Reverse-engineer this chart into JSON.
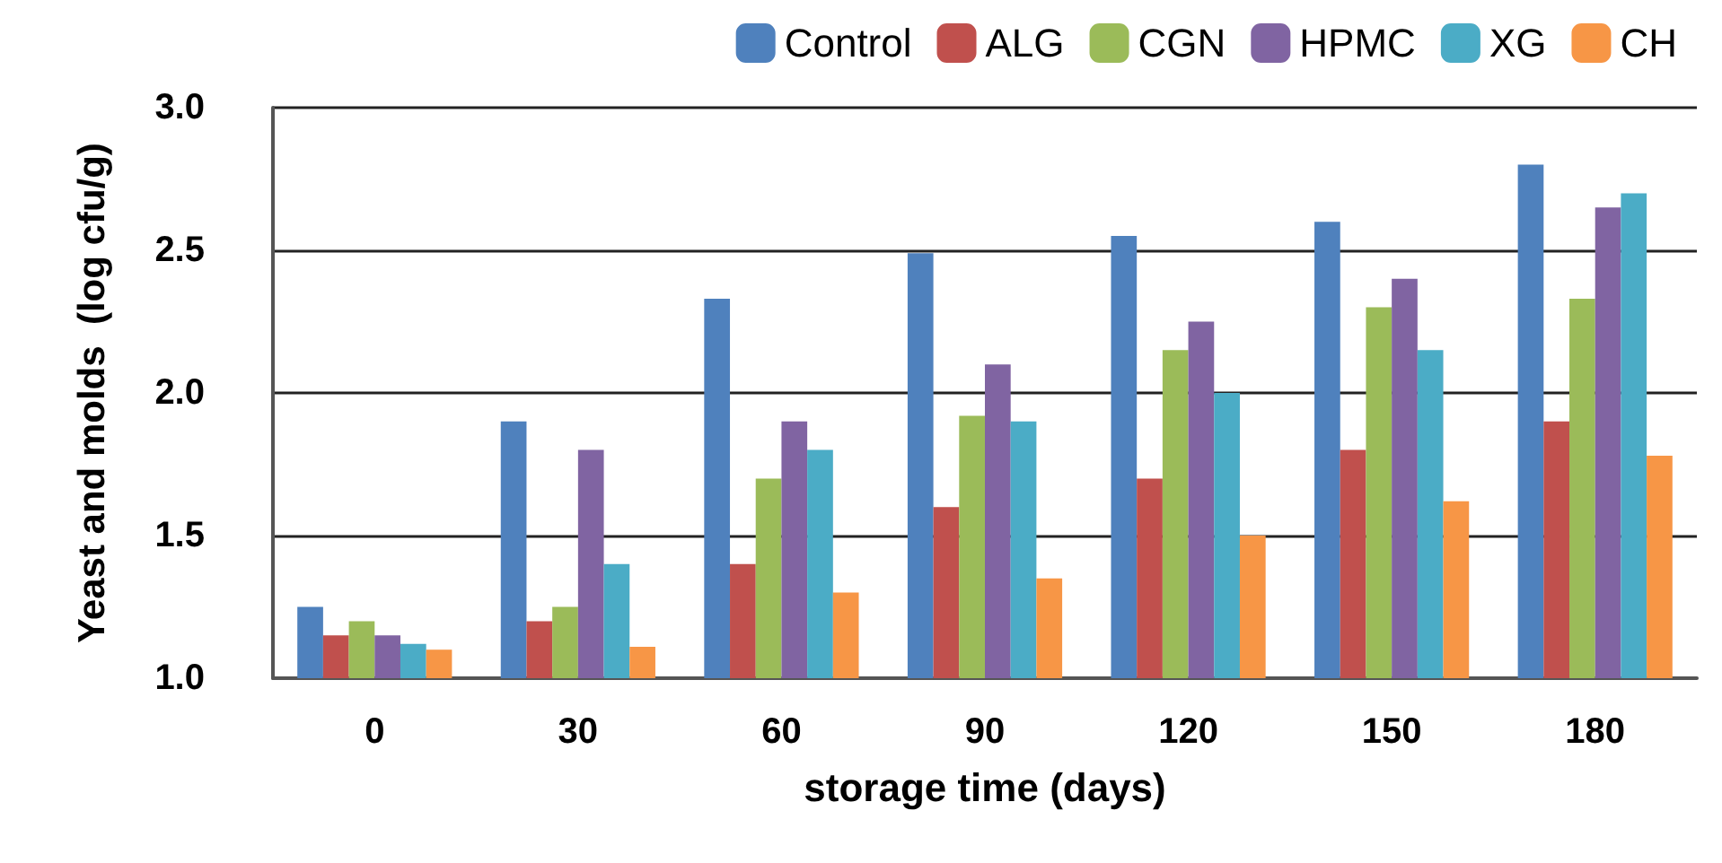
{
  "chart_data": {
    "type": "bar",
    "xlabel": "storage time (days)",
    "ylabel": "Yeast and molds  (log cfu/g)",
    "categories": [
      "0",
      "30",
      "60",
      "90",
      "120",
      "150",
      "180"
    ],
    "series": [
      {
        "name": "Control",
        "color": "#4f81bd",
        "values": [
          1.25,
          1.9,
          2.33,
          2.49,
          2.55,
          2.6,
          2.8
        ]
      },
      {
        "name": "ALG",
        "color": "#c0504d",
        "values": [
          1.15,
          1.2,
          1.4,
          1.6,
          1.7,
          1.8,
          1.9
        ]
      },
      {
        "name": "CGN",
        "color": "#9bbb59",
        "values": [
          1.2,
          1.25,
          1.7,
          1.92,
          2.15,
          2.3,
          2.33
        ]
      },
      {
        "name": "HPMC",
        "color": "#8064a2",
        "values": [
          1.15,
          1.8,
          1.9,
          2.1,
          2.25,
          2.4,
          2.65
        ]
      },
      {
        "name": "XG",
        "color": "#4bacc6",
        "values": [
          1.12,
          1.4,
          1.8,
          1.9,
          2.0,
          2.15,
          2.7
        ]
      },
      {
        "name": "CH",
        "color": "#f79646",
        "values": [
          1.1,
          1.11,
          1.3,
          1.35,
          1.5,
          1.62,
          1.78
        ]
      }
    ],
    "ylim": [
      1.0,
      3.0
    ],
    "yticks": [
      {
        "value": 1.0,
        "label": "1.0"
      },
      {
        "value": 1.5,
        "label": "1.5"
      },
      {
        "value": 2.0,
        "label": "2.0"
      },
      {
        "value": 2.5,
        "label": "2.5"
      },
      {
        "value": 3.0,
        "label": "3.0"
      }
    ],
    "grid": "y",
    "legend": "top right"
  }
}
